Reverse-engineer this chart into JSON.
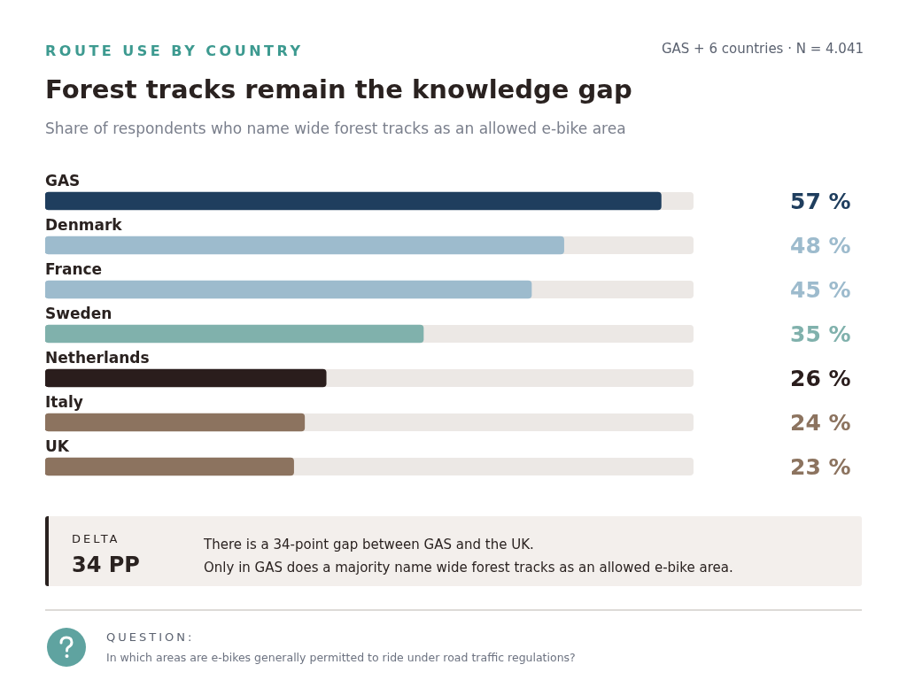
{
  "chart_data": {
    "type": "bar",
    "orientation": "horizontal",
    "title": "Forest tracks remain the knowledge gap",
    "subtitle": "Share of respondents who name wide forest tracks as an allowed e-bike area",
    "categories": [
      "GAS",
      "Denmark",
      "France",
      "Sweden",
      "Netherlands",
      "Italy",
      "UK"
    ],
    "values": [
      57,
      48,
      45,
      35,
      26,
      24,
      23
    ],
    "colors": [
      "#1f3e5e",
      "#9dbbcd",
      "#9dbbcd",
      "#80b1ac",
      "#2a1d1c",
      "#8c735f",
      "#8c735f"
    ],
    "value_labels": [
      "57 %",
      "48 %",
      "45 %",
      "35 %",
      "26 %",
      "24 %",
      "23 %"
    ],
    "xlim": [
      0,
      60
    ],
    "annotations": [
      "ROUTE USE BY COUNTRY",
      "GAS + 6 countries · N = 4.041",
      "DELTA",
      "34 PP",
      "There is a 34-point gap between GAS and the UK.",
      "Only in GAS does a majority name wide forest tracks as an allowed e-bike area.",
      "QUESTION:",
      "In which areas are e-bikes generally permitted to ride under road traffic regulations?"
    ]
  }
}
